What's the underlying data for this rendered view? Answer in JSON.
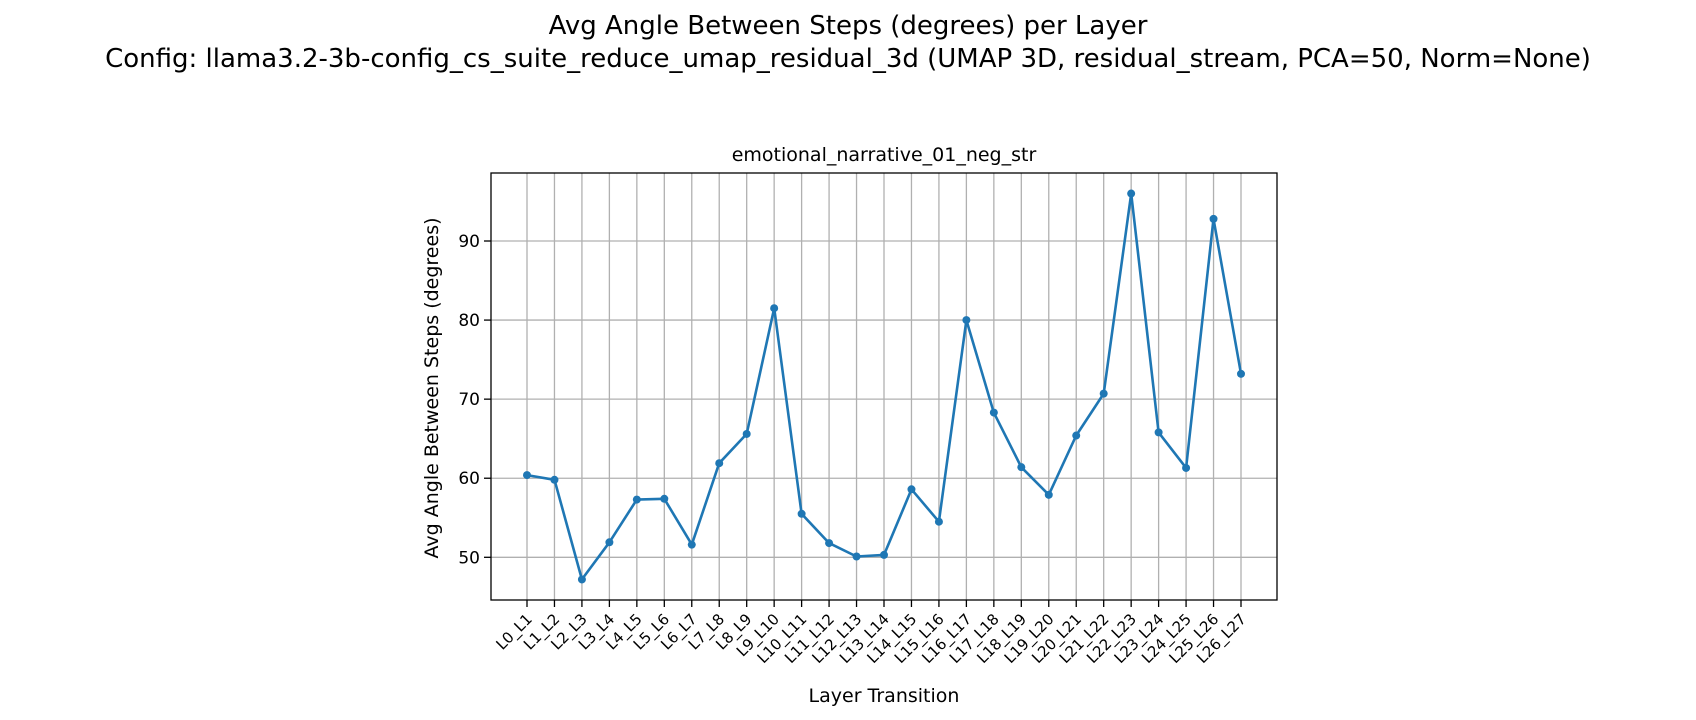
{
  "figure": {
    "suptitle_line1": "Avg Angle Between Steps (degrees) per Layer",
    "suptitle_line2": "Config: llama3.2-3b-config_cs_suite_reduce_umap_residual_3d (UMAP 3D, residual_stream, PCA=50, Norm=None)"
  },
  "chart_data": {
    "type": "line",
    "title": "emotional_narrative_01_neg_str",
    "xlabel": "Layer Transition",
    "ylabel": "Avg Angle Between Steps (degrees)",
    "categories": [
      "L0_L1",
      "L1_L2",
      "L2_L3",
      "L3_L4",
      "L4_L5",
      "L5_L6",
      "L6_L7",
      "L7_L8",
      "L8_L9",
      "L9_L10",
      "L10_L11",
      "L11_L12",
      "L12_L13",
      "L13_L14",
      "L14_L15",
      "L15_L16",
      "L16_L17",
      "L17_L18",
      "L18_L19",
      "L19_L20",
      "L20_L21",
      "L21_L22",
      "L22_L23",
      "L23_L24",
      "L24_L25",
      "L25_L26",
      "L26_L27"
    ],
    "values": [
      60.4,
      59.8,
      47.2,
      51.9,
      57.3,
      57.4,
      51.6,
      61.9,
      65.6,
      81.5,
      55.5,
      51.8,
      50.1,
      50.3,
      58.6,
      54.5,
      80.0,
      68.3,
      61.4,
      57.9,
      65.4,
      70.7,
      96.0,
      65.8,
      61.3,
      92.8,
      73.2
    ],
    "ylim": [
      44.6,
      98.6
    ],
    "yticks": [
      50,
      60,
      70,
      80,
      90
    ],
    "grid": true,
    "color": "#1f77b4"
  }
}
